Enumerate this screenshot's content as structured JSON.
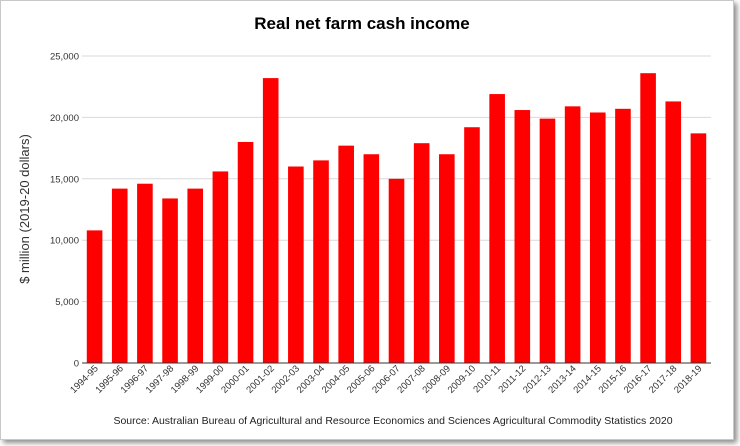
{
  "chart_data": {
    "type": "bar",
    "title": "Real net farm cash income",
    "xlabel": "",
    "ylabel": "$ million (2019-20 dollars)",
    "ylim": [
      0,
      25000
    ],
    "yticks": [
      "0",
      "5,000",
      "10,000",
      "15,000",
      "20,000",
      "25,000"
    ],
    "grid": true,
    "bar_color": "#ff0000",
    "categories": [
      "1994-95",
      "1995-96",
      "1996-97",
      "1997-98",
      "1998-99",
      "1999-00",
      "2000-01",
      "2001-02",
      "2002-03",
      "2003-04",
      "2004-05",
      "2005-06",
      "2006-07",
      "2007-08",
      "2008-09",
      "2009-10",
      "2010-11",
      "2011-12",
      "2012-13",
      "2013-14",
      "2014-15",
      "2015-16",
      "2016-17",
      "2017-18",
      "2018-19"
    ],
    "values": [
      10800,
      14200,
      14600,
      13400,
      14200,
      15600,
      18000,
      23200,
      16000,
      16500,
      17700,
      17000,
      15000,
      17900,
      17000,
      19200,
      21900,
      20600,
      19900,
      20900,
      20400,
      20700,
      23600,
      21300,
      18700
    ],
    "source": "Source: Australian Bureau of Agricultural and Resource Economics and Sciences Agricultural Commodity Statistics 2020"
  }
}
